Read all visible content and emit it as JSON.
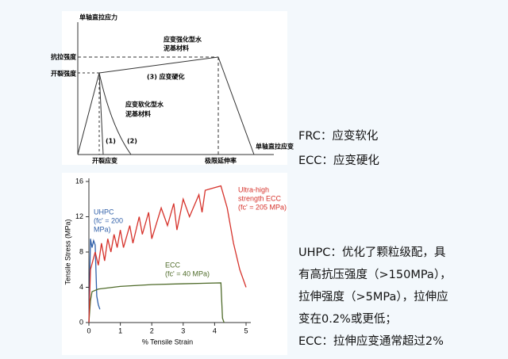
{
  "diagram": {
    "labels": [
      "单轴直拉应力",
      "抗拉强度",
      "开裂强度",
      "应变强化型水",
      "泥基材料",
      "(3) 应变硬化",
      "应变软化型水",
      "泥基材料",
      "(1)",
      "(2)",
      "开裂应变",
      "极限延伸率",
      "单轴直拉应变"
    ]
  },
  "chart_data": {
    "type": "line",
    "xlabel": "% Tensile Strain",
    "ylabel": "Tensile Stress (MPa)",
    "xlim": [
      0,
      5
    ],
    "ylim": [
      0,
      16
    ],
    "xticks": [
      0,
      1,
      2,
      3,
      4,
      5
    ],
    "yticks": [
      0,
      4,
      8,
      12,
      16
    ],
    "annotations": [
      [
        "UHPC",
        "(fc' = 200",
        "MPa)"
      ],
      [
        "ECC",
        "(fc' = 40 MPa)"
      ],
      [
        "Ultra-high",
        "strength ECC",
        "(fc' = 205 MPa)"
      ]
    ],
    "series": [
      {
        "color": "#2f5fa8",
        "x": [
          0,
          0.05,
          0.1,
          0.15,
          0.2,
          0.25,
          0.3,
          0.35
        ],
        "values": [
          0,
          9.5,
          8.5,
          9.3,
          8.8,
          3,
          2,
          1.5
        ]
      },
      {
        "color": "#4f6b2a",
        "x": [
          0,
          0.05,
          0.1,
          0.3,
          1,
          2,
          3,
          4.2,
          4.25,
          4.3
        ],
        "values": [
          0,
          2.5,
          3.5,
          3.8,
          4.1,
          4.3,
          4.4,
          4.5,
          0.5,
          0
        ]
      },
      {
        "color": "#d6322b",
        "x": [
          0,
          0.05,
          0.2,
          0.3,
          0.4,
          0.5,
          0.6,
          0.7,
          0.8,
          0.9,
          1,
          1.1,
          1.3,
          1.4,
          1.6,
          1.7,
          1.9,
          2,
          2.3,
          2.5,
          2.7,
          2.8,
          3,
          3.2,
          3.5,
          3.6,
          3.7,
          4,
          4.2,
          4.4,
          4.6,
          4.8,
          5
        ],
        "values": [
          0,
          6,
          8,
          6.5,
          9,
          7,
          9.5,
          8,
          10,
          8.5,
          10.5,
          8.5,
          11,
          9,
          12,
          10,
          12.5,
          9.5,
          13,
          11,
          13.5,
          10.5,
          14,
          12,
          14.5,
          12.5,
          15,
          15.3,
          15.5,
          13,
          9,
          6,
          4
        ]
      }
    ]
  },
  "side": {
    "top": [
      "FRC：应变软化",
      "ECC：应变硬化"
    ],
    "bottom": [
      "UHPC：优化了颗粒级配，具",
      "有高抗压强度（>150MPa），",
      "拉伸强度（>5MPa），拉伸应",
      "变在0.2%或更低；",
      "ECC：拉伸应变通常超过2%"
    ]
  }
}
